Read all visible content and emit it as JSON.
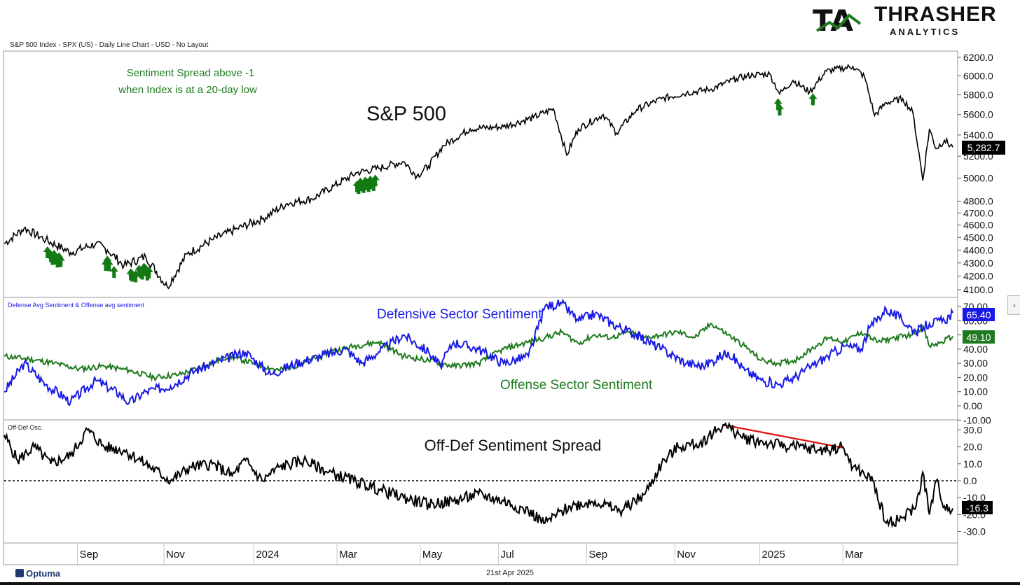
{
  "header": {
    "chart_info": "S&P 500 Index - SPX (US) - Daily Line Chart - USD - No Layout"
  },
  "logo": {
    "mark": "TA",
    "name": "THRASHER",
    "sub": "ANALYTICS"
  },
  "footer": {
    "brand": "Optuma",
    "date": "21st Apr 2025"
  },
  "side_tab": {
    "glyph": "‹"
  },
  "colors": {
    "price": "#000000",
    "defensive": "#1a1ae6",
    "offense": "#1e7a1e",
    "arrow": "#137a13",
    "trend": "#e01010",
    "zero": "#000000"
  },
  "chart_data": [
    {
      "type": "line",
      "title": "S&P 500",
      "panel_label": "",
      "annotation_lines": [
        "Sentiment Spread above -1",
        "when Index is at a 20-day low"
      ],
      "x_labels": [
        "Sep",
        "Nov",
        "2024",
        "Mar",
        "May",
        "Jul",
        "Sep",
        "Nov",
        "2025",
        "Mar"
      ],
      "y_ticks": [
        "6200.0",
        "6000.0",
        "5800.0",
        "5600.0",
        "5400.0",
        "5200.0",
        "5000.0",
        "4800.0",
        "4700.0",
        "4600.0",
        "4500.0",
        "4400.0",
        "4300.0",
        "4200.0",
        "4100.0"
      ],
      "ylim": [
        4050,
        6230
      ],
      "scale": "log",
      "last_value": "5,282.7",
      "series": [
        {
          "name": "S&P 500",
          "points": [
            [
              0,
              4450
            ],
            [
              12,
              4575
            ],
            [
              25,
              4480
            ],
            [
              40,
              4380
            ],
            [
              55,
              4450
            ],
            [
              62,
              4400
            ],
            [
              72,
              4280
            ],
            [
              85,
              4350
            ],
            [
              98,
              4120
            ],
            [
              110,
              4370
            ],
            [
              125,
              4480
            ],
            [
              140,
              4570
            ],
            [
              155,
              4650
            ],
            [
              170,
              4780
            ],
            [
              185,
              4820
            ],
            [
              198,
              4930
            ],
            [
              212,
              5050
            ],
            [
              225,
              5090
            ],
            [
              240,
              5150
            ],
            [
              248,
              5020
            ],
            [
              255,
              5110
            ],
            [
              264,
              5300
            ],
            [
              280,
              5460
            ],
            [
              300,
              5480
            ],
            [
              318,
              5570
            ],
            [
              330,
              5660
            ],
            [
              338,
              5210
            ],
            [
              345,
              5460
            ],
            [
              360,
              5600
            ],
            [
              368,
              5420
            ],
            [
              380,
              5650
            ],
            [
              395,
              5760
            ],
            [
              410,
              5820
            ],
            [
              425,
              5860
            ],
            [
              440,
              5970
            ],
            [
              450,
              6010
            ],
            [
              460,
              6020
            ],
            [
              466,
              5810
            ],
            [
              474,
              5950
            ],
            [
              484,
              5830
            ],
            [
              494,
              6050
            ],
            [
              510,
              6100
            ],
            [
              517,
              5990
            ],
            [
              523,
              5590
            ],
            [
              530,
              5720
            ],
            [
              540,
              5760
            ],
            [
              546,
              5620
            ],
            [
              552,
              4980
            ],
            [
              556,
              5460
            ],
            [
              560,
              5270
            ],
            [
              565,
              5350
            ],
            [
              570,
              5283
            ]
          ]
        }
      ],
      "signals_x": [
        26,
        28,
        29,
        30,
        31,
        32,
        33,
        34,
        61,
        62,
        63,
        66,
        76,
        77,
        79,
        81,
        82,
        83,
        84,
        85,
        86,
        87,
        212,
        213,
        214,
        215,
        216,
        217,
        218,
        219,
        220,
        221,
        222,
        223,
        465,
        466,
        486
      ]
    },
    {
      "type": "line",
      "title": "",
      "panel_label": "Defense Avg Sentiment & Offense avg sentiment",
      "y_ticks": [
        "70.00",
        "60.00",
        "50.00",
        "40.00",
        "30.00",
        "20.00",
        "10.00",
        "0.00",
        "-10.00"
      ],
      "ylim": [
        -11,
        75
      ],
      "series": [
        {
          "name": "Defensive Sector Sentiment",
          "last_value": "65.40",
          "points": [
            [
              0,
              10
            ],
            [
              12,
              30
            ],
            [
              25,
              15
            ],
            [
              40,
              3
            ],
            [
              55,
              18
            ],
            [
              70,
              8
            ],
            [
              75,
              2
            ],
            [
              85,
              10
            ],
            [
              100,
              14
            ],
            [
              115,
              25
            ],
            [
              130,
              32
            ],
            [
              145,
              38
            ],
            [
              160,
              22
            ],
            [
              175,
              30
            ],
            [
              190,
              35
            ],
            [
              205,
              40
            ],
            [
              215,
              30
            ],
            [
              225,
              38
            ],
            [
              240,
              50
            ],
            [
              255,
              38
            ],
            [
              262,
              28
            ],
            [
              270,
              45
            ],
            [
              285,
              40
            ],
            [
              300,
              30
            ],
            [
              315,
              35
            ],
            [
              325,
              70
            ],
            [
              335,
              72
            ],
            [
              345,
              60
            ],
            [
              355,
              65
            ],
            [
              365,
              58
            ],
            [
              380,
              50
            ],
            [
              395,
              40
            ],
            [
              410,
              30
            ],
            [
              420,
              28
            ],
            [
              435,
              38
            ],
            [
              445,
              25
            ],
            [
              455,
              18
            ],
            [
              465,
              15
            ],
            [
              475,
              20
            ],
            [
              485,
              28
            ],
            [
              495,
              35
            ],
            [
              505,
              42
            ],
            [
              515,
              40
            ],
            [
              520,
              55
            ],
            [
              530,
              68
            ],
            [
              538,
              62
            ],
            [
              548,
              52
            ],
            [
              556,
              58
            ],
            [
              565,
              60
            ],
            [
              570,
              65.4
            ]
          ]
        },
        {
          "name": "Offense Sector Sentiment",
          "last_value": "49.10",
          "points": [
            [
              0,
              35
            ],
            [
              15,
              33
            ],
            [
              30,
              30
            ],
            [
              45,
              26
            ],
            [
              60,
              28
            ],
            [
              75,
              25
            ],
            [
              90,
              20
            ],
            [
              105,
              22
            ],
            [
              120,
              28
            ],
            [
              135,
              35
            ],
            [
              150,
              30
            ],
            [
              165,
              25
            ],
            [
              180,
              30
            ],
            [
              195,
              38
            ],
            [
              210,
              42
            ],
            [
              225,
              45
            ],
            [
              240,
              35
            ],
            [
              255,
              32
            ],
            [
              270,
              28
            ],
            [
              285,
              30
            ],
            [
              300,
              40
            ],
            [
              315,
              45
            ],
            [
              325,
              48
            ],
            [
              335,
              52
            ],
            [
              345,
              44
            ],
            [
              355,
              50
            ],
            [
              365,
              48
            ],
            [
              375,
              52
            ],
            [
              385,
              48
            ],
            [
              395,
              50
            ],
            [
              405,
              52
            ],
            [
              415,
              48
            ],
            [
              425,
              58
            ],
            [
              435,
              50
            ],
            [
              445,
              42
            ],
            [
              455,
              32
            ],
            [
              465,
              30
            ],
            [
              475,
              32
            ],
            [
              485,
              40
            ],
            [
              495,
              48
            ],
            [
              505,
              45
            ],
            [
              515,
              52
            ],
            [
              525,
              45
            ],
            [
              535,
              48
            ],
            [
              545,
              50
            ],
            [
              552,
              56
            ],
            [
              556,
              42
            ],
            [
              562,
              44
            ],
            [
              570,
              49.1
            ]
          ]
        }
      ]
    },
    {
      "type": "line",
      "title": "Off-Def Sentiment Spread",
      "panel_label": "Off-Def Osc.",
      "y_ticks": [
        "30.0",
        "20.0",
        "10.0",
        "0.0",
        "-10.0",
        "-20.0",
        "-30.0"
      ],
      "ylim": [
        -37,
        34
      ],
      "last_value": "-16.3",
      "zero_line": 0,
      "trendline": [
        [
          432,
          33
        ],
        [
          504,
          19.5
        ]
      ],
      "series": [
        {
          "name": "Off-Def Sentiment Spread",
          "points": [
            [
              0,
              27
            ],
            [
              8,
              12
            ],
            [
              18,
              20
            ],
            [
              28,
              10
            ],
            [
              40,
              15
            ],
            [
              50,
              30
            ],
            [
              60,
              20
            ],
            [
              72,
              18
            ],
            [
              85,
              10
            ],
            [
              100,
              0
            ],
            [
              112,
              8
            ],
            [
              125,
              10
            ],
            [
              137,
              3
            ],
            [
              145,
              12
            ],
            [
              155,
              0
            ],
            [
              165,
              8
            ],
            [
              180,
              12
            ],
            [
              195,
              5
            ],
            [
              210,
              0
            ],
            [
              225,
              -5
            ],
            [
              240,
              -10
            ],
            [
              255,
              -14
            ],
            [
              270,
              -12
            ],
            [
              285,
              -8
            ],
            [
              300,
              -12
            ],
            [
              315,
              -18
            ],
            [
              325,
              -25
            ],
            [
              340,
              -15
            ],
            [
              355,
              -12
            ],
            [
              370,
              -18
            ],
            [
              385,
              -8
            ],
            [
              395,
              10
            ],
            [
              405,
              20
            ],
            [
              418,
              22
            ],
            [
              432,
              33
            ],
            [
              445,
              25
            ],
            [
              460,
              22
            ],
            [
              475,
              20
            ],
            [
              490,
              18
            ],
            [
              504,
              20
            ],
            [
              510,
              8
            ],
            [
              515,
              5
            ],
            [
              522,
              0
            ],
            [
              530,
              -25
            ],
            [
              540,
              -22
            ],
            [
              548,
              -15
            ],
            [
              552,
              5
            ],
            [
              556,
              -20
            ],
            [
              560,
              0
            ],
            [
              565,
              -15
            ],
            [
              570,
              -16.3
            ]
          ]
        }
      ]
    }
  ]
}
